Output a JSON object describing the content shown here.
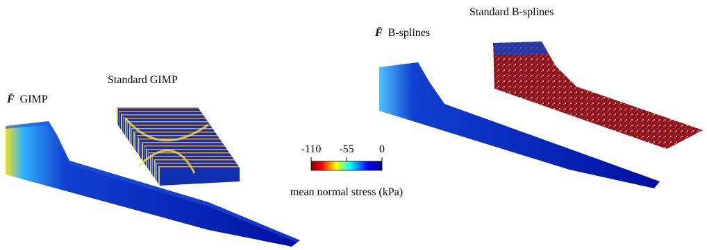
{
  "panels": [
    {
      "symbol": "F̄",
      "text": "GIMP"
    },
    {
      "text": "Standard GIMP"
    },
    {
      "symbol": "F̄",
      "text": "B-splines"
    },
    {
      "text": "Standard B-splines"
    }
  ],
  "colorbar": {
    "range": [
      -110,
      0
    ],
    "ticks": [
      -110,
      -55,
      0
    ],
    "label": "mean normal stress (kPa)"
  }
}
